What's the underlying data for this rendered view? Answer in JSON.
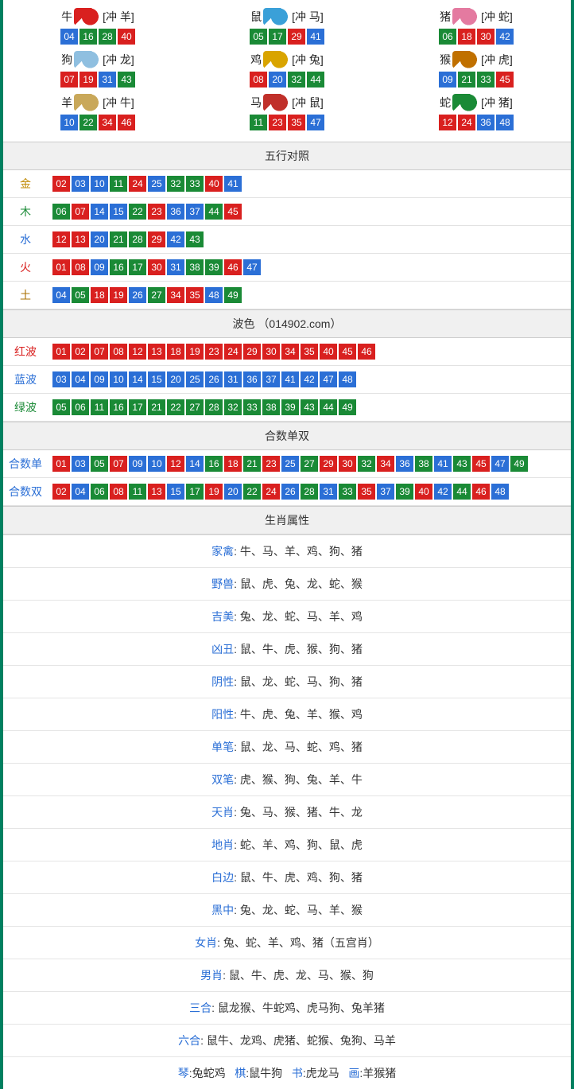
{
  "colors": {
    "accent_border": "#008060",
    "red": "#d9201f",
    "blue": "#2b6fd6",
    "green": "#1a8a36",
    "header_bg": "#f0f0f0",
    "divider": "#e2e2e2"
  },
  "zodiac_icon_colors": {
    "牛": "#d9201f",
    "鼠": "#3aa0d8",
    "猪": "#e47aa0",
    "狗": "#8fbfe0",
    "鸡": "#d9a400",
    "猴": "#c07000",
    "羊": "#c9a85a",
    "马": "#c0302a",
    "蛇": "#1a8a36"
  },
  "zodiac": [
    {
      "name": "牛",
      "clash": "[冲 羊]",
      "nums": [
        {
          "v": "04",
          "c": "blue"
        },
        {
          "v": "16",
          "c": "green"
        },
        {
          "v": "28",
          "c": "green"
        },
        {
          "v": "40",
          "c": "red"
        }
      ]
    },
    {
      "name": "鼠",
      "clash": "[冲 马]",
      "nums": [
        {
          "v": "05",
          "c": "green"
        },
        {
          "v": "17",
          "c": "green"
        },
        {
          "v": "29",
          "c": "red"
        },
        {
          "v": "41",
          "c": "blue"
        }
      ]
    },
    {
      "name": "猪",
      "clash": "[冲 蛇]",
      "nums": [
        {
          "v": "06",
          "c": "green"
        },
        {
          "v": "18",
          "c": "red"
        },
        {
          "v": "30",
          "c": "red"
        },
        {
          "v": "42",
          "c": "blue"
        }
      ]
    },
    {
      "name": "狗",
      "clash": "[冲 龙]",
      "nums": [
        {
          "v": "07",
          "c": "red"
        },
        {
          "v": "19",
          "c": "red"
        },
        {
          "v": "31",
          "c": "blue"
        },
        {
          "v": "43",
          "c": "green"
        }
      ]
    },
    {
      "name": "鸡",
      "clash": "[冲 兔]",
      "nums": [
        {
          "v": "08",
          "c": "red"
        },
        {
          "v": "20",
          "c": "blue"
        },
        {
          "v": "32",
          "c": "green"
        },
        {
          "v": "44",
          "c": "green"
        }
      ]
    },
    {
      "name": "猴",
      "clash": "[冲 虎]",
      "nums": [
        {
          "v": "09",
          "c": "blue"
        },
        {
          "v": "21",
          "c": "green"
        },
        {
          "v": "33",
          "c": "green"
        },
        {
          "v": "45",
          "c": "red"
        }
      ]
    },
    {
      "name": "羊",
      "clash": "[冲 牛]",
      "nums": [
        {
          "v": "10",
          "c": "blue"
        },
        {
          "v": "22",
          "c": "green"
        },
        {
          "v": "34",
          "c": "red"
        },
        {
          "v": "46",
          "c": "red"
        }
      ]
    },
    {
      "name": "马",
      "clash": "[冲 鼠]",
      "nums": [
        {
          "v": "11",
          "c": "green"
        },
        {
          "v": "23",
          "c": "red"
        },
        {
          "v": "35",
          "c": "red"
        },
        {
          "v": "47",
          "c": "blue"
        }
      ]
    },
    {
      "name": "蛇",
      "clash": "[冲 猪]",
      "nums": [
        {
          "v": "12",
          "c": "red"
        },
        {
          "v": "24",
          "c": "red"
        },
        {
          "v": "36",
          "c": "blue"
        },
        {
          "v": "48",
          "c": "blue"
        }
      ]
    }
  ],
  "sections": {
    "wuxing": {
      "title": "五行对照",
      "rows": [
        {
          "label": "金",
          "label_cls": "c-gold",
          "nums": [
            {
              "v": "02",
              "c": "red"
            },
            {
              "v": "03",
              "c": "blue"
            },
            {
              "v": "10",
              "c": "blue"
            },
            {
              "v": "11",
              "c": "green"
            },
            {
              "v": "24",
              "c": "red"
            },
            {
              "v": "25",
              "c": "blue"
            },
            {
              "v": "32",
              "c": "green"
            },
            {
              "v": "33",
              "c": "green"
            },
            {
              "v": "40",
              "c": "red"
            },
            {
              "v": "41",
              "c": "blue"
            }
          ]
        },
        {
          "label": "木",
          "label_cls": "c-wood",
          "nums": [
            {
              "v": "06",
              "c": "green"
            },
            {
              "v": "07",
              "c": "red"
            },
            {
              "v": "14",
              "c": "blue"
            },
            {
              "v": "15",
              "c": "blue"
            },
            {
              "v": "22",
              "c": "green"
            },
            {
              "v": "23",
              "c": "red"
            },
            {
              "v": "36",
              "c": "blue"
            },
            {
              "v": "37",
              "c": "blue"
            },
            {
              "v": "44",
              "c": "green"
            },
            {
              "v": "45",
              "c": "red"
            }
          ]
        },
        {
          "label": "水",
          "label_cls": "c-water",
          "nums": [
            {
              "v": "12",
              "c": "red"
            },
            {
              "v": "13",
              "c": "red"
            },
            {
              "v": "20",
              "c": "blue"
            },
            {
              "v": "21",
              "c": "green"
            },
            {
              "v": "28",
              "c": "green"
            },
            {
              "v": "29",
              "c": "red"
            },
            {
              "v": "42",
              "c": "blue"
            },
            {
              "v": "43",
              "c": "green"
            }
          ]
        },
        {
          "label": "火",
          "label_cls": "c-fire",
          "nums": [
            {
              "v": "01",
              "c": "red"
            },
            {
              "v": "08",
              "c": "red"
            },
            {
              "v": "09",
              "c": "blue"
            },
            {
              "v": "16",
              "c": "green"
            },
            {
              "v": "17",
              "c": "green"
            },
            {
              "v": "30",
              "c": "red"
            },
            {
              "v": "31",
              "c": "blue"
            },
            {
              "v": "38",
              "c": "green"
            },
            {
              "v": "39",
              "c": "green"
            },
            {
              "v": "46",
              "c": "red"
            },
            {
              "v": "47",
              "c": "blue"
            }
          ]
        },
        {
          "label": "土",
          "label_cls": "c-earth",
          "nums": [
            {
              "v": "04",
              "c": "blue"
            },
            {
              "v": "05",
              "c": "green"
            },
            {
              "v": "18",
              "c": "red"
            },
            {
              "v": "19",
              "c": "red"
            },
            {
              "v": "26",
              "c": "blue"
            },
            {
              "v": "27",
              "c": "green"
            },
            {
              "v": "34",
              "c": "red"
            },
            {
              "v": "35",
              "c": "red"
            },
            {
              "v": "48",
              "c": "blue"
            },
            {
              "v": "49",
              "c": "green"
            }
          ]
        }
      ]
    },
    "bose": {
      "title": "波色 （014902.com）",
      "rows": [
        {
          "label": "红波",
          "label_cls": "c-red",
          "nums": [
            {
              "v": "01",
              "c": "red"
            },
            {
              "v": "02",
              "c": "red"
            },
            {
              "v": "07",
              "c": "red"
            },
            {
              "v": "08",
              "c": "red"
            },
            {
              "v": "12",
              "c": "red"
            },
            {
              "v": "13",
              "c": "red"
            },
            {
              "v": "18",
              "c": "red"
            },
            {
              "v": "19",
              "c": "red"
            },
            {
              "v": "23",
              "c": "red"
            },
            {
              "v": "24",
              "c": "red"
            },
            {
              "v": "29",
              "c": "red"
            },
            {
              "v": "30",
              "c": "red"
            },
            {
              "v": "34",
              "c": "red"
            },
            {
              "v": "35",
              "c": "red"
            },
            {
              "v": "40",
              "c": "red"
            },
            {
              "v": "45",
              "c": "red"
            },
            {
              "v": "46",
              "c": "red"
            }
          ]
        },
        {
          "label": "蓝波",
          "label_cls": "c-blue",
          "nums": [
            {
              "v": "03",
              "c": "blue"
            },
            {
              "v": "04",
              "c": "blue"
            },
            {
              "v": "09",
              "c": "blue"
            },
            {
              "v": "10",
              "c": "blue"
            },
            {
              "v": "14",
              "c": "blue"
            },
            {
              "v": "15",
              "c": "blue"
            },
            {
              "v": "20",
              "c": "blue"
            },
            {
              "v": "25",
              "c": "blue"
            },
            {
              "v": "26",
              "c": "blue"
            },
            {
              "v": "31",
              "c": "blue"
            },
            {
              "v": "36",
              "c": "blue"
            },
            {
              "v": "37",
              "c": "blue"
            },
            {
              "v": "41",
              "c": "blue"
            },
            {
              "v": "42",
              "c": "blue"
            },
            {
              "v": "47",
              "c": "blue"
            },
            {
              "v": "48",
              "c": "blue"
            }
          ]
        },
        {
          "label": "绿波",
          "label_cls": "c-green",
          "nums": [
            {
              "v": "05",
              "c": "green"
            },
            {
              "v": "06",
              "c": "green"
            },
            {
              "v": "11",
              "c": "green"
            },
            {
              "v": "16",
              "c": "green"
            },
            {
              "v": "17",
              "c": "green"
            },
            {
              "v": "21",
              "c": "green"
            },
            {
              "v": "22",
              "c": "green"
            },
            {
              "v": "27",
              "c": "green"
            },
            {
              "v": "28",
              "c": "green"
            },
            {
              "v": "32",
              "c": "green"
            },
            {
              "v": "33",
              "c": "green"
            },
            {
              "v": "38",
              "c": "green"
            },
            {
              "v": "39",
              "c": "green"
            },
            {
              "v": "43",
              "c": "green"
            },
            {
              "v": "44",
              "c": "green"
            },
            {
              "v": "49",
              "c": "green"
            }
          ]
        }
      ]
    },
    "heshu": {
      "title": "合数单双",
      "rows": [
        {
          "label": "合数单",
          "label_cls": "c-blue",
          "nums": [
            {
              "v": "01",
              "c": "red"
            },
            {
              "v": "03",
              "c": "blue"
            },
            {
              "v": "05",
              "c": "green"
            },
            {
              "v": "07",
              "c": "red"
            },
            {
              "v": "09",
              "c": "blue"
            },
            {
              "v": "10",
              "c": "blue"
            },
            {
              "v": "12",
              "c": "red"
            },
            {
              "v": "14",
              "c": "blue"
            },
            {
              "v": "16",
              "c": "green"
            },
            {
              "v": "18",
              "c": "red"
            },
            {
              "v": "21",
              "c": "green"
            },
            {
              "v": "23",
              "c": "red"
            },
            {
              "v": "25",
              "c": "blue"
            },
            {
              "v": "27",
              "c": "green"
            },
            {
              "v": "29",
              "c": "red"
            },
            {
              "v": "30",
              "c": "red"
            },
            {
              "v": "32",
              "c": "green"
            },
            {
              "v": "34",
              "c": "red"
            },
            {
              "v": "36",
              "c": "blue"
            },
            {
              "v": "38",
              "c": "green"
            },
            {
              "v": "41",
              "c": "blue"
            },
            {
              "v": "43",
              "c": "green"
            },
            {
              "v": "45",
              "c": "red"
            },
            {
              "v": "47",
              "c": "blue"
            },
            {
              "v": "49",
              "c": "green"
            }
          ]
        },
        {
          "label": "合数双",
          "label_cls": "c-blue",
          "nums": [
            {
              "v": "02",
              "c": "red"
            },
            {
              "v": "04",
              "c": "blue"
            },
            {
              "v": "06",
              "c": "green"
            },
            {
              "v": "08",
              "c": "red"
            },
            {
              "v": "11",
              "c": "green"
            },
            {
              "v": "13",
              "c": "red"
            },
            {
              "v": "15",
              "c": "blue"
            },
            {
              "v": "17",
              "c": "green"
            },
            {
              "v": "19",
              "c": "red"
            },
            {
              "v": "20",
              "c": "blue"
            },
            {
              "v": "22",
              "c": "green"
            },
            {
              "v": "24",
              "c": "red"
            },
            {
              "v": "26",
              "c": "blue"
            },
            {
              "v": "28",
              "c": "green"
            },
            {
              "v": "31",
              "c": "blue"
            },
            {
              "v": "33",
              "c": "green"
            },
            {
              "v": "35",
              "c": "red"
            },
            {
              "v": "37",
              "c": "blue"
            },
            {
              "v": "39",
              "c": "green"
            },
            {
              "v": "40",
              "c": "red"
            },
            {
              "v": "42",
              "c": "blue"
            },
            {
              "v": "44",
              "c": "green"
            },
            {
              "v": "46",
              "c": "red"
            },
            {
              "v": "48",
              "c": "blue"
            }
          ]
        }
      ]
    },
    "shuxing": {
      "title": "生肖属性",
      "rows": [
        {
          "key": "家禽",
          "val": "牛、马、羊、鸡、狗、猪"
        },
        {
          "key": "野兽",
          "val": "鼠、虎、兔、龙、蛇、猴"
        },
        {
          "key": "吉美",
          "val": "兔、龙、蛇、马、羊、鸡"
        },
        {
          "key": "凶丑",
          "val": "鼠、牛、虎、猴、狗、猪"
        },
        {
          "key": "阴性",
          "val": "鼠、龙、蛇、马、狗、猪"
        },
        {
          "key": "阳性",
          "val": "牛、虎、兔、羊、猴、鸡"
        },
        {
          "key": "单笔",
          "val": "鼠、龙、马、蛇、鸡、猪"
        },
        {
          "key": "双笔",
          "val": "虎、猴、狗、兔、羊、牛"
        },
        {
          "key": "天肖",
          "val": "兔、马、猴、猪、牛、龙"
        },
        {
          "key": "地肖",
          "val": "蛇、羊、鸡、狗、鼠、虎"
        },
        {
          "key": "白边",
          "val": "鼠、牛、虎、鸡、狗、猪"
        },
        {
          "key": "黑中",
          "val": "兔、龙、蛇、马、羊、猴"
        },
        {
          "key": "女肖",
          "val": "兔、蛇、羊、鸡、猪（五宫肖）"
        },
        {
          "key": "男肖",
          "val": "鼠、牛、虎、龙、马、猴、狗"
        },
        {
          "key": "三合",
          "val": "鼠龙猴、牛蛇鸡、虎马狗、兔羊猪"
        },
        {
          "key": "六合",
          "val": "鼠牛、龙鸡、虎猪、蛇猴、兔狗、马羊"
        }
      ],
      "footer_parts": [
        {
          "k": "琴",
          "v": "兔蛇鸡"
        },
        {
          "k": "棋",
          "v": "鼠牛狗"
        },
        {
          "k": "书",
          "v": "虎龙马"
        },
        {
          "k": "画",
          "v": "羊猴猪"
        }
      ]
    }
  }
}
